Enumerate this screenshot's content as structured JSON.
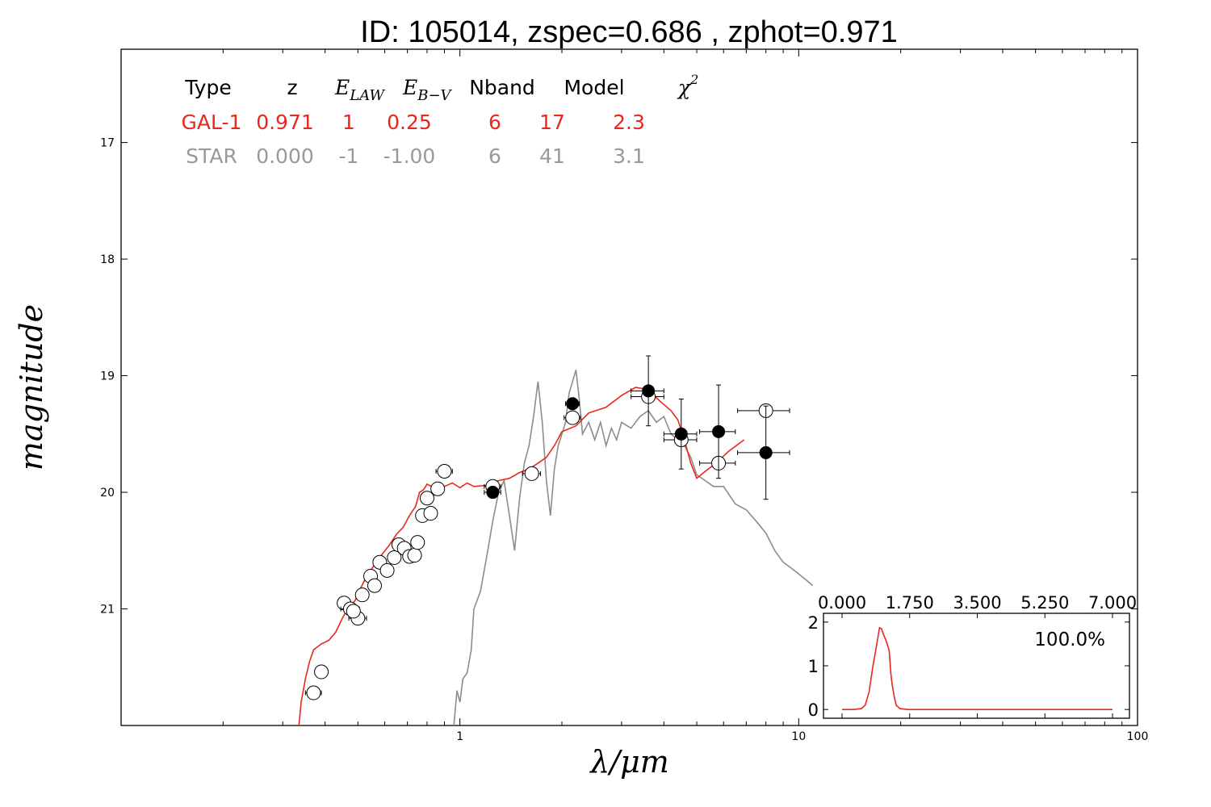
{
  "chart_data": {
    "type": "scatter",
    "title": "ID:  105014, zspec=0.686 , zphot=0.971",
    "xlabel": "λ/μm",
    "ylabel": "magnitude",
    "xscale": "log",
    "xlim": [
      0.1,
      100
    ],
    "ylim": [
      22.0,
      16.2
    ],
    "y_inverted": true,
    "x_tick_labels": [
      {
        "value": 1,
        "label": "1"
      },
      {
        "value": 10,
        "label": "10"
      },
      {
        "value": 100,
        "label": "100"
      }
    ],
    "y_tick_labels": [
      {
        "value": 17,
        "label": "17"
      },
      {
        "value": 18,
        "label": "18"
      },
      {
        "value": 19,
        "label": "19"
      },
      {
        "value": 20,
        "label": "20"
      },
      {
        "value": 21,
        "label": "21"
      }
    ],
    "table": {
      "headers": {
        "type": "Type",
        "z": "z",
        "elaw": "E",
        "elaw_sub": "LAW",
        "ebv": "E",
        "ebv_sub": "B−V",
        "nband": "Nband",
        "model": "Model",
        "chi": "χ",
        "chi_sup": "2"
      },
      "rows": [
        {
          "type": "GAL-1",
          "z": "0.971",
          "elaw": "1",
          "ebv": "0.25",
          "nband": "6",
          "model": "17",
          "chi2": "2.3",
          "color": "#e8281e"
        },
        {
          "type": "STAR",
          "z": "0.000",
          "elaw": "-1",
          "ebv": "-1.00",
          "nband": "6",
          "model": "41",
          "chi2": "3.1",
          "color": "#999999"
        }
      ]
    },
    "colors": {
      "galaxy": "#e8281e",
      "star": "#8c8c8c",
      "points": "#000000"
    },
    "galaxy_model": [
      [
        0.335,
        22.0
      ],
      [
        0.34,
        21.8
      ],
      [
        0.35,
        21.6
      ],
      [
        0.36,
        21.45
      ],
      [
        0.37,
        21.35
      ],
      [
        0.39,
        21.3
      ],
      [
        0.41,
        21.27
      ],
      [
        0.43,
        21.2
      ],
      [
        0.45,
        21.08
      ],
      [
        0.47,
        20.98
      ],
      [
        0.49,
        20.93
      ],
      [
        0.51,
        20.82
      ],
      [
        0.53,
        20.72
      ],
      [
        0.56,
        20.62
      ],
      [
        0.59,
        20.53
      ],
      [
        0.62,
        20.45
      ],
      [
        0.65,
        20.36
      ],
      [
        0.68,
        20.3
      ],
      [
        0.71,
        20.2
      ],
      [
        0.74,
        20.12
      ],
      [
        0.76,
        20.0
      ],
      [
        0.78,
        19.98
      ],
      [
        0.8,
        19.93
      ],
      [
        0.85,
        19.97
      ],
      [
        0.9,
        19.95
      ],
      [
        0.95,
        19.92
      ],
      [
        1.0,
        19.96
      ],
      [
        1.05,
        19.92
      ],
      [
        1.1,
        19.95
      ],
      [
        1.2,
        19.94
      ],
      [
        1.3,
        19.9
      ],
      [
        1.4,
        19.88
      ],
      [
        1.5,
        19.83
      ],
      [
        1.6,
        19.8
      ],
      [
        1.7,
        19.75
      ],
      [
        1.8,
        19.7
      ],
      [
        1.9,
        19.6
      ],
      [
        2.0,
        19.48
      ],
      [
        2.2,
        19.43
      ],
      [
        2.4,
        19.32
      ],
      [
        2.7,
        19.27
      ],
      [
        3.0,
        19.17
      ],
      [
        3.3,
        19.1
      ],
      [
        3.6,
        19.12
      ],
      [
        3.9,
        19.22
      ],
      [
        4.2,
        19.3
      ],
      [
        4.4,
        19.38
      ],
      [
        4.6,
        19.55
      ],
      [
        4.8,
        19.75
      ],
      [
        5.0,
        19.88
      ],
      [
        5.3,
        19.82
      ],
      [
        5.7,
        19.75
      ],
      [
        6.2,
        19.65
      ],
      [
        6.9,
        19.55
      ]
    ],
    "star_model": [
      [
        0.96,
        22.0
      ],
      [
        0.98,
        21.7
      ],
      [
        1.0,
        21.8
      ],
      [
        1.02,
        21.6
      ],
      [
        1.05,
        21.55
      ],
      [
        1.08,
        21.35
      ],
      [
        1.1,
        21.0
      ],
      [
        1.15,
        20.85
      ],
      [
        1.2,
        20.55
      ],
      [
        1.25,
        20.25
      ],
      [
        1.3,
        20.0
      ],
      [
        1.35,
        19.9
      ],
      [
        1.4,
        20.2
      ],
      [
        1.45,
        20.5
      ],
      [
        1.5,
        20.05
      ],
      [
        1.55,
        19.75
      ],
      [
        1.6,
        19.6
      ],
      [
        1.65,
        19.35
      ],
      [
        1.7,
        19.05
      ],
      [
        1.75,
        19.4
      ],
      [
        1.8,
        19.9
      ],
      [
        1.85,
        20.2
      ],
      [
        1.9,
        19.8
      ],
      [
        1.95,
        19.6
      ],
      [
        2.0,
        19.5
      ],
      [
        2.05,
        19.4
      ],
      [
        2.1,
        19.15
      ],
      [
        2.15,
        19.05
      ],
      [
        2.2,
        18.95
      ],
      [
        2.25,
        19.2
      ],
      [
        2.3,
        19.5
      ],
      [
        2.4,
        19.4
      ],
      [
        2.5,
        19.55
      ],
      [
        2.6,
        19.4
      ],
      [
        2.7,
        19.6
      ],
      [
        2.8,
        19.45
      ],
      [
        2.9,
        19.55
      ],
      [
        3.0,
        19.4
      ],
      [
        3.2,
        19.45
      ],
      [
        3.4,
        19.35
      ],
      [
        3.6,
        19.3
      ],
      [
        3.8,
        19.4
      ],
      [
        4.0,
        19.35
      ],
      [
        4.2,
        19.5
      ],
      [
        4.4,
        19.55
      ],
      [
        4.6,
        19.6
      ],
      [
        4.8,
        19.7
      ],
      [
        5.0,
        19.85
      ],
      [
        5.3,
        19.9
      ],
      [
        5.6,
        19.95
      ],
      [
        6.0,
        19.95
      ],
      [
        6.5,
        20.1
      ],
      [
        7.0,
        20.15
      ],
      [
        7.5,
        20.25
      ],
      [
        8.0,
        20.35
      ],
      [
        8.5,
        20.5
      ],
      [
        9.0,
        20.6
      ],
      [
        9.5,
        20.65
      ],
      [
        10.0,
        20.7
      ],
      [
        10.5,
        20.75
      ],
      [
        11.0,
        20.8
      ]
    ],
    "open_points": [
      {
        "x": 0.37,
        "y": 21.72,
        "xerr": 0.02
      },
      {
        "x": 0.39,
        "y": 21.54,
        "xerr": 0.0
      },
      {
        "x": 0.455,
        "y": 20.95,
        "xerr": 0.0
      },
      {
        "x": 0.475,
        "y": 21.0,
        "xerr": 0.03
      },
      {
        "x": 0.5,
        "y": 21.08,
        "xerr": 0.03
      },
      {
        "x": 0.485,
        "y": 21.02,
        "xerr": 0.0
      },
      {
        "x": 0.515,
        "y": 20.88,
        "xerr": 0.0
      },
      {
        "x": 0.545,
        "y": 20.72,
        "xerr": 0.0
      },
      {
        "x": 0.56,
        "y": 20.8,
        "xerr": 0.02
      },
      {
        "x": 0.58,
        "y": 20.6,
        "xerr": 0.02
      },
      {
        "x": 0.61,
        "y": 20.67,
        "xerr": 0.02
      },
      {
        "x": 0.64,
        "y": 20.56,
        "xerr": 0.02
      },
      {
        "x": 0.66,
        "y": 20.45,
        "xerr": 0.02
      },
      {
        "x": 0.685,
        "y": 20.48,
        "xerr": 0.02
      },
      {
        "x": 0.71,
        "y": 20.55,
        "xerr": 0.02
      },
      {
        "x": 0.735,
        "y": 20.54,
        "xerr": 0.02
      },
      {
        "x": 0.75,
        "y": 20.43,
        "xerr": 0.02
      },
      {
        "x": 0.775,
        "y": 20.2,
        "xerr": 0.0
      },
      {
        "x": 0.8,
        "y": 20.05,
        "xerr": 0.0
      },
      {
        "x": 0.82,
        "y": 20.18,
        "xerr": 0.02
      },
      {
        "x": 0.86,
        "y": 19.97,
        "xerr": 0.03
      },
      {
        "x": 0.9,
        "y": 19.82,
        "xerr": 0.05
      },
      {
        "x": 1.25,
        "y": 19.95,
        "xerr": 0.07
      },
      {
        "x": 1.63,
        "y": 19.84,
        "xerr": 0.1
      },
      {
        "x": 2.15,
        "y": 19.36,
        "xerr": 0.12
      },
      {
        "x": 3.6,
        "y": 19.18,
        "xerr": 0.4
      },
      {
        "x": 4.5,
        "y": 19.55,
        "xerr": 0.5
      },
      {
        "x": 5.8,
        "y": 19.75,
        "xerr": 0.7
      },
      {
        "x": 8.0,
        "y": 19.3,
        "xerr": 1.4
      }
    ],
    "filled_points": [
      {
        "x": 1.25,
        "y": 20.0,
        "xerr": 0.07,
        "yerr": 0.05
      },
      {
        "x": 2.15,
        "y": 19.24,
        "xerr": 0.1,
        "yerr": 0.05
      },
      {
        "x": 3.6,
        "y": 19.13,
        "xerr": 0.4,
        "yerr": 0.3
      },
      {
        "x": 4.5,
        "y": 19.5,
        "xerr": 0.5,
        "yerr": 0.3
      },
      {
        "x": 5.8,
        "y": 19.48,
        "xerr": 0.7,
        "yerr": 0.4
      },
      {
        "x": 8.0,
        "y": 19.66,
        "xerr": 1.4,
        "yerr": 0.4
      }
    ],
    "inset": {
      "type": "line",
      "annotation": "100.0%",
      "xlim": [
        0,
        7
      ],
      "ylim": [
        -0.2,
        2.2
      ],
      "x_tick_labels": [
        "0.000",
        "1.750",
        "3.500",
        "5.250",
        "7.000"
      ],
      "x_tick_values": [
        0,
        1.75,
        3.5,
        5.25,
        7
      ],
      "y_tick_labels": [
        "0",
        "1",
        "2"
      ],
      "y_tick_values": [
        0,
        1,
        2
      ],
      "pdf": [
        [
          0.0,
          0.0
        ],
        [
          0.3,
          0.0
        ],
        [
          0.5,
          0.02
        ],
        [
          0.6,
          0.1
        ],
        [
          0.7,
          0.4
        ],
        [
          0.8,
          1.0
        ],
        [
          0.9,
          1.5
        ],
        [
          0.97,
          1.87
        ],
        [
          1.02,
          1.85
        ],
        [
          1.08,
          1.7
        ],
        [
          1.15,
          1.55
        ],
        [
          1.22,
          1.35
        ],
        [
          1.26,
          0.85
        ],
        [
          1.3,
          0.55
        ],
        [
          1.35,
          0.3
        ],
        [
          1.4,
          0.1
        ],
        [
          1.5,
          0.02
        ],
        [
          1.7,
          0.0
        ],
        [
          7.0,
          0.0
        ]
      ]
    }
  }
}
